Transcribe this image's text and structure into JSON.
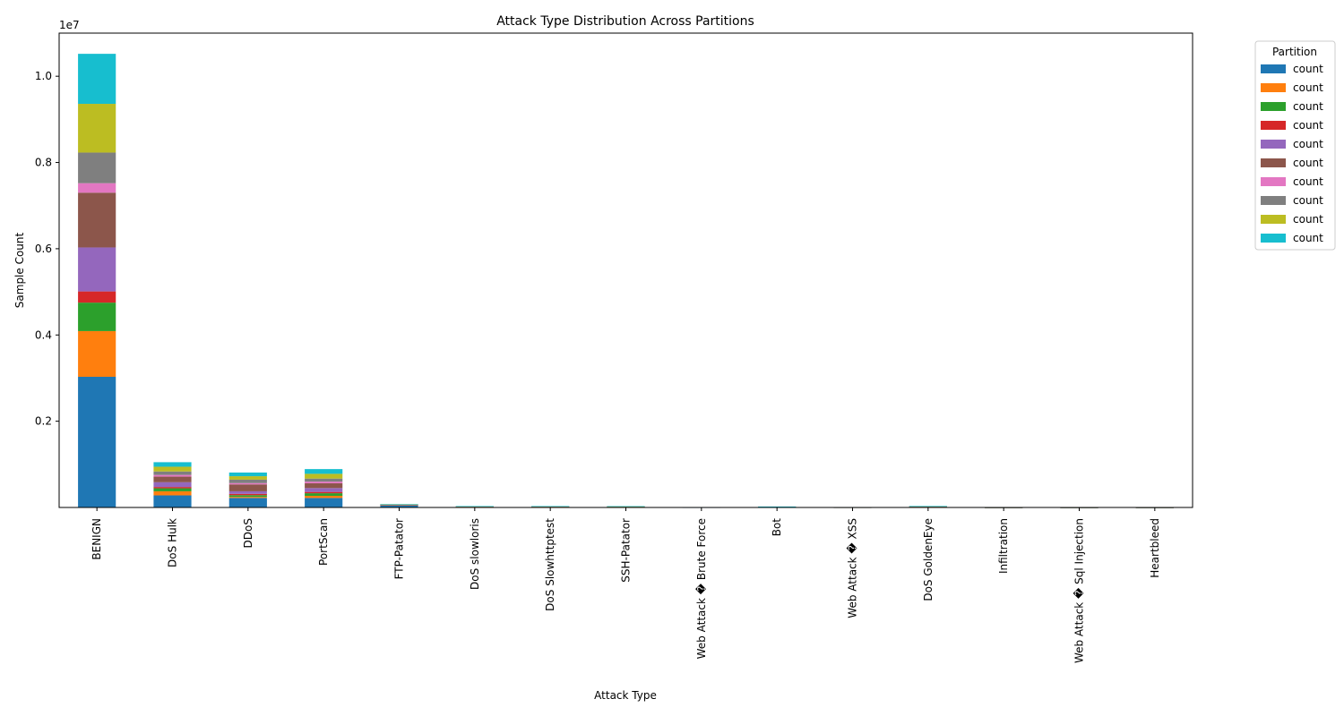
{
  "chart_data": {
    "type": "bar",
    "stacked": true,
    "title": "Attack Type Distribution Across Partitions",
    "xlabel": "Attack Type",
    "ylabel": "Sample Count",
    "y_multiplier_label": "1e7",
    "ylim": [
      0,
      11000000
    ],
    "yticks": [
      2000000,
      4000000,
      6000000,
      8000000,
      10000000
    ],
    "ytick_labels": [
      "0.2",
      "0.4",
      "0.6",
      "0.8",
      "1.0"
    ],
    "grid": false,
    "legend": {
      "title": "Partition",
      "placement": "outside-top-right"
    },
    "categories": [
      "BENIGN",
      "DoS Hulk",
      "DDoS",
      "PortScan",
      "FTP-Patator",
      "DoS slowloris",
      "DoS Slowhttptest",
      "SSH-Patator",
      "Web Attack � Brute Force",
      "Bot",
      "Web Attack � XSS",
      "DoS GoldenEye",
      "Infiltration",
      "Web Attack � Sql Injection",
      "Heartbleed"
    ],
    "series": [
      {
        "name": "count",
        "color": "#1f77b4",
        "values": [
          3030000,
          280000,
          220000,
          220000,
          50000,
          3000,
          3000,
          3000,
          1000,
          3000,
          500,
          3000,
          20,
          10,
          5
        ]
      },
      {
        "name": "count",
        "color": "#ff7f0e",
        "values": [
          1060000,
          95000,
          25000,
          50000,
          5000,
          3000,
          3000,
          3000,
          1000,
          2000,
          500,
          3000,
          20,
          10,
          5
        ]
      },
      {
        "name": "count",
        "color": "#2ca02c",
        "values": [
          660000,
          70000,
          40000,
          60000,
          5000,
          6000,
          6000,
          3000,
          1000,
          2000,
          500,
          3000,
          20,
          10,
          5
        ]
      },
      {
        "name": "count",
        "color": "#d62728",
        "values": [
          260000,
          30000,
          30000,
          30000,
          2000,
          3000,
          3000,
          5000,
          1000,
          2000,
          500,
          3000,
          20,
          10,
          5
        ]
      },
      {
        "name": "count",
        "color": "#9467bd",
        "values": [
          1020000,
          110000,
          60000,
          90000,
          2000,
          3000,
          3000,
          2000,
          1000,
          2000,
          500,
          3000,
          20,
          10,
          5
        ]
      },
      {
        "name": "count",
        "color": "#8c564b",
        "values": [
          1270000,
          130000,
          160000,
          110000,
          2000,
          3000,
          3000,
          3000,
          1000,
          3000,
          500,
          3000,
          20,
          10,
          5
        ]
      },
      {
        "name": "count",
        "color": "#e377c2",
        "values": [
          220000,
          40000,
          30000,
          40000,
          2000,
          2000,
          2000,
          2000,
          1000,
          2000,
          500,
          2000,
          20,
          10,
          5
        ]
      },
      {
        "name": "count",
        "color": "#7f7f7f",
        "values": [
          710000,
          80000,
          80000,
          70000,
          3000,
          3000,
          3000,
          3000,
          1000,
          2000,
          500,
          3000,
          20,
          10,
          5
        ]
      },
      {
        "name": "count",
        "color": "#bcbd22",
        "values": [
          1130000,
          110000,
          80000,
          110000,
          3000,
          3000,
          3000,
          3000,
          1000,
          2000,
          500,
          8000,
          20,
          10,
          5
        ]
      },
      {
        "name": "count",
        "color": "#17becf",
        "values": [
          1160000,
          105000,
          85000,
          110000,
          3000,
          3000,
          3000,
          3000,
          1000,
          2000,
          500,
          3000,
          20,
          10,
          5
        ]
      }
    ]
  }
}
